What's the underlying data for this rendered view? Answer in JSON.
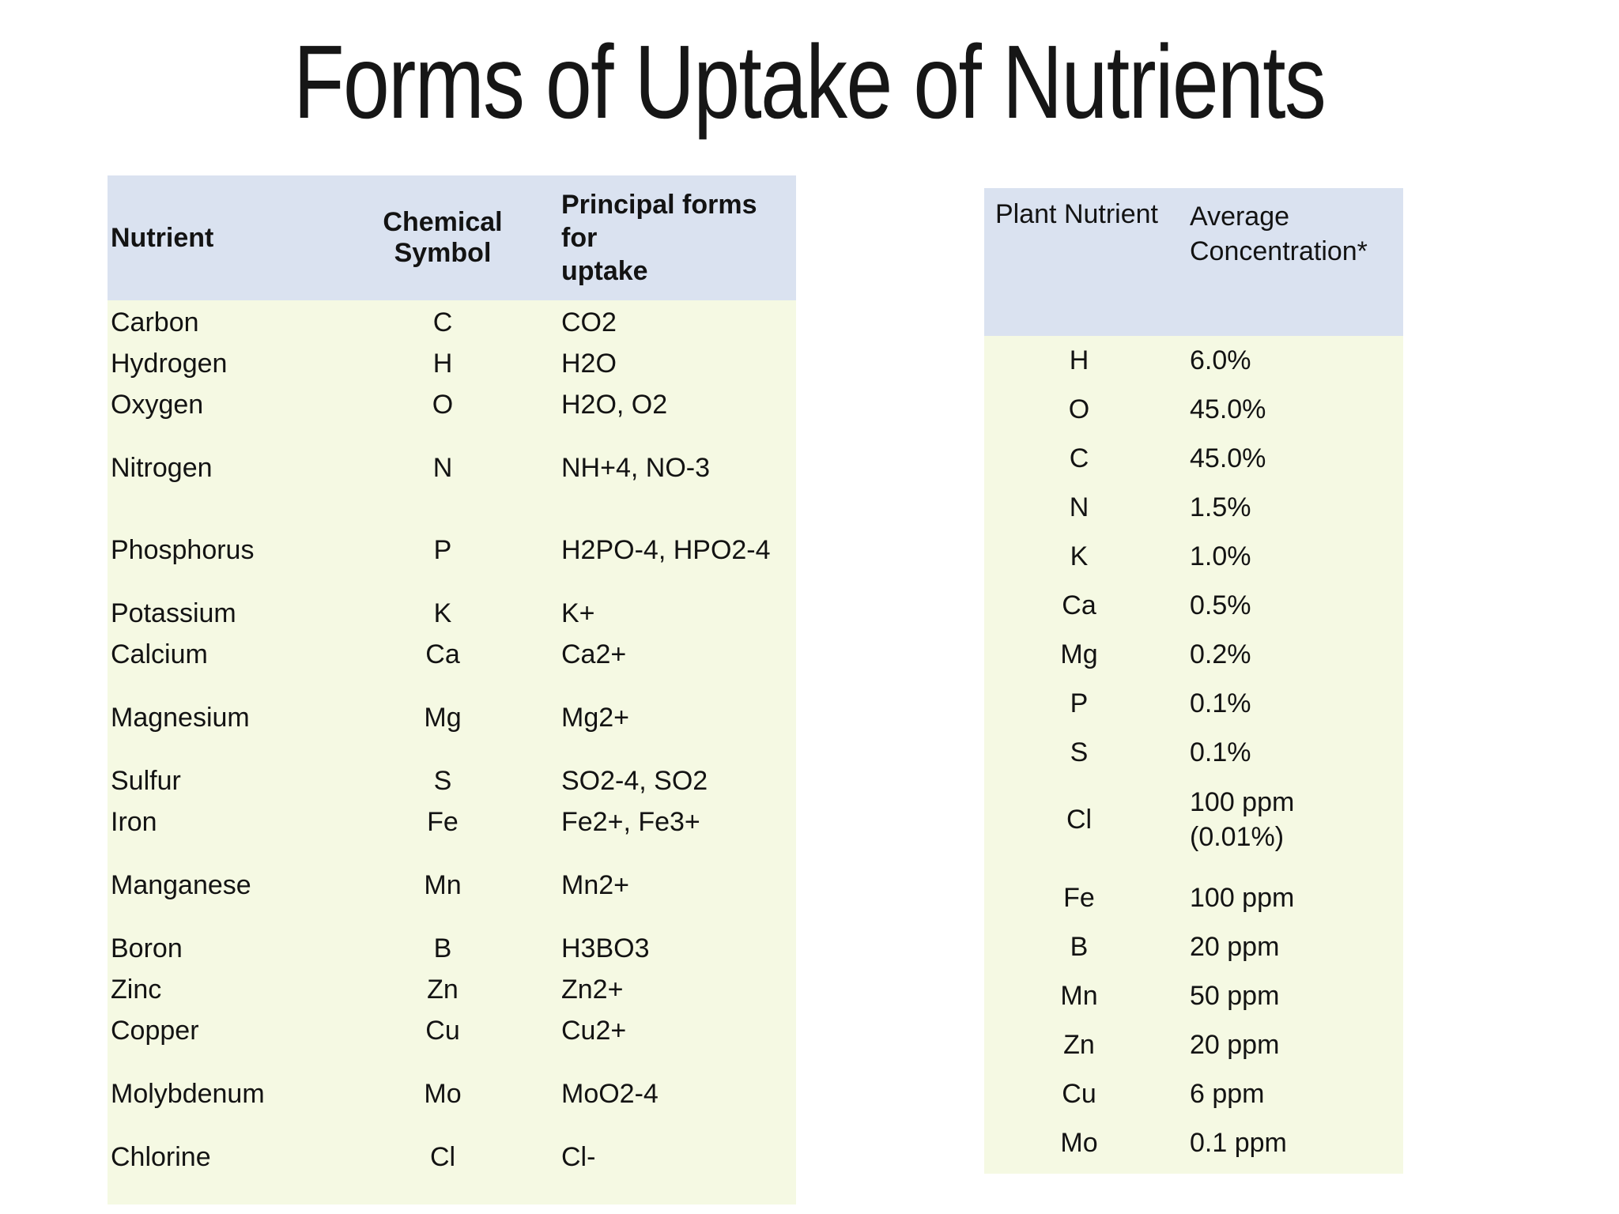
{
  "title": "Forms of Uptake of Nutrients",
  "colors": {
    "header_bg": "#dae2f0",
    "body_bg": "#f5f9e3",
    "text": "#131313",
    "page_bg": "#ffffff"
  },
  "left_table": {
    "headers": {
      "nutrient": "Nutrient",
      "symbol": "Chemical Symbol",
      "forms": "Principal forms for\nuptake"
    },
    "rows": [
      {
        "nutrient": "Carbon",
        "symbol": "C",
        "forms": "CO2"
      },
      {
        "nutrient": "Hydrogen",
        "symbol": "H",
        "forms": "H2O"
      },
      {
        "nutrient": "Oxygen",
        "symbol": "O",
        "forms": "H2O, O2"
      },
      {
        "nutrient": "Nitrogen",
        "symbol": "N",
        "forms": "NH+4, NO-3",
        "gap": "sm"
      },
      {
        "nutrient": "Phosphorus",
        "symbol": "P",
        "forms": "H2PO-4, HPO2-4",
        "gap": "lg"
      },
      {
        "nutrient": "Potassium",
        "symbol": "K",
        "forms": "K+",
        "gap": "sm"
      },
      {
        "nutrient": "Calcium",
        "symbol": "Ca",
        "forms": "Ca2+"
      },
      {
        "nutrient": "Magnesium",
        "symbol": "Mg",
        "forms": "Mg2+",
        "gap": "sm"
      },
      {
        "nutrient": "Sulfur",
        "symbol": "S",
        "forms": "SO2-4, SO2",
        "gap": "sm"
      },
      {
        "nutrient": "Iron",
        "symbol": "Fe",
        "forms": "Fe2+, Fe3+"
      },
      {
        "nutrient": "Manganese",
        "symbol": "Mn",
        "forms": "Mn2+",
        "gap": "sm"
      },
      {
        "nutrient": "Boron",
        "symbol": "B",
        "forms": "H3BO3",
        "gap": "sm"
      },
      {
        "nutrient": "Zinc",
        "symbol": "Zn",
        "forms": "Zn2+"
      },
      {
        "nutrient": "Copper",
        "symbol": "Cu",
        "forms": "Cu2+"
      },
      {
        "nutrient": "Molybdenum",
        "symbol": "Mo",
        "forms": "MoO2-4",
        "gap": "sm"
      },
      {
        "nutrient": "Chlorine",
        "symbol": "Cl",
        "forms": "Cl-",
        "gap": "sm"
      }
    ]
  },
  "right_table": {
    "headers": {
      "nutrient": "Plant Nutrient",
      "concentration": "Average\nConcentration*"
    },
    "rows": [
      {
        "symbol": "H",
        "value": "6.0%"
      },
      {
        "symbol": "O",
        "value": "45.0%"
      },
      {
        "symbol": "C",
        "value": "45.0%"
      },
      {
        "symbol": "N",
        "value": "1.5%"
      },
      {
        "symbol": "K",
        "value": "1.0%"
      },
      {
        "symbol": "Ca",
        "value": "0.5%"
      },
      {
        "symbol": "Mg",
        "value": "0.2%"
      },
      {
        "symbol": "P",
        "value": "0.1%"
      },
      {
        "symbol": "S",
        "value": "0.1%"
      },
      {
        "symbol": "Cl",
        "value": "100 ppm\n(0.01%)"
      },
      {
        "symbol": "Fe",
        "value": "100 ppm",
        "gap": "sm"
      },
      {
        "symbol": "B",
        "value": "20 ppm"
      },
      {
        "symbol": "Mn",
        "value": "50 ppm"
      },
      {
        "symbol": "Zn",
        "value": "20 ppm"
      },
      {
        "symbol": "Cu",
        "value": "6 ppm"
      },
      {
        "symbol": "Mo",
        "value": "0.1 ppm"
      }
    ]
  }
}
